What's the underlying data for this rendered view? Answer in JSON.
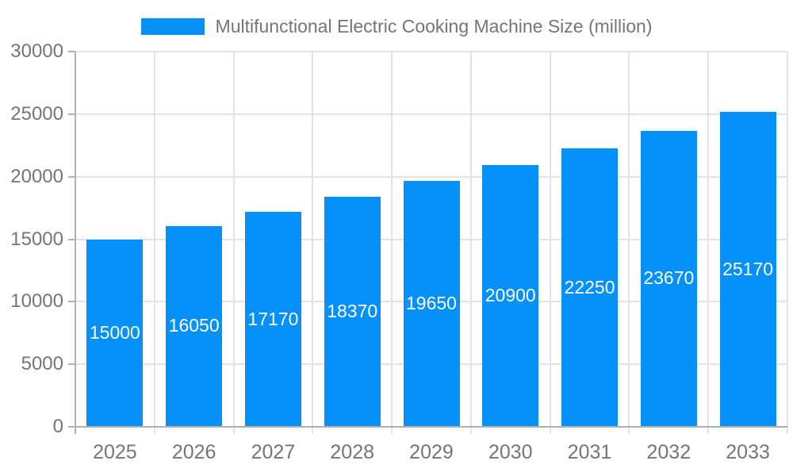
{
  "chart_data": {
    "type": "bar",
    "title": "Multifunctional Electric Cooking Machine Size (million)",
    "legend": {
      "label": "Multifunctional Electric Cooking Machine Size (million)",
      "position": "top",
      "swatch_color": "#0690fa"
    },
    "categories": [
      "2025",
      "2026",
      "2027",
      "2028",
      "2029",
      "2030",
      "2031",
      "2032",
      "2033"
    ],
    "series": [
      {
        "name": "Multifunctional Electric Cooking Machine Size (million)",
        "values": [
          15000,
          16050,
          17170,
          18370,
          19650,
          20900,
          22250,
          23670,
          25170
        ]
      }
    ],
    "value_labels": [
      "15000",
      "16050",
      "17170",
      "18370",
      "19650",
      "20900",
      "22250",
      "23670",
      "25170"
    ],
    "xlabel": "",
    "ylabel": "",
    "ylim": [
      0,
      30000
    ],
    "ytick_interval": 5000,
    "yticks": [
      0,
      5000,
      10000,
      15000,
      20000,
      25000,
      30000
    ],
    "ytick_labels": [
      "0",
      "5000",
      "10000",
      "15000",
      "20000",
      "25000",
      "30000"
    ],
    "grid": true,
    "colors": {
      "bar": "#0690fa",
      "bar_value_text": "#ffffff",
      "axis_text": "#757575",
      "gridline": "#e3e3e3",
      "axis_line": "#b0b0b0"
    }
  }
}
